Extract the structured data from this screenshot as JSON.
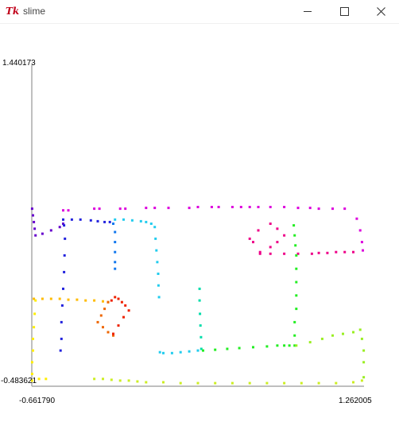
{
  "window": {
    "title": "slime",
    "app_icon": "tk-icon"
  },
  "buttons": {
    "minimize": "minimize-icon",
    "maximize": "maximize-icon",
    "close": "close-icon"
  },
  "axes": {
    "y_max_label": "1.440173",
    "y_min_label": "-0.483621",
    "x_min_label": "-0.661790",
    "x_max_label": "1.262005"
  },
  "chart_data": {
    "type": "scatter",
    "xlim": [
      -0.66179,
      1.262005
    ],
    "ylim": [
      -0.483621,
      1.440173
    ],
    "grid": false,
    "legend": "none",
    "series": [
      {
        "color": "#dd00dd",
        "x": [
          -0.48,
          -0.45,
          -0.3,
          -0.27,
          -0.15,
          -0.12,
          0.0,
          0.05,
          0.13,
          0.25,
          0.3,
          0.38,
          0.42,
          0.5,
          0.55,
          0.6,
          0.65,
          0.72,
          0.8,
          0.88,
          0.95,
          1.0,
          1.08,
          1.15,
          1.22,
          1.24,
          1.25,
          1.255
        ],
        "y": [
          0.57,
          0.57,
          0.58,
          0.58,
          0.58,
          0.58,
          0.585,
          0.585,
          0.585,
          0.585,
          0.59,
          0.59,
          0.59,
          0.59,
          0.59,
          0.59,
          0.59,
          0.59,
          0.59,
          0.585,
          0.585,
          0.58,
          0.58,
          0.58,
          0.52,
          0.45,
          0.38,
          0.33
        ]
      },
      {
        "color": "#ee0088",
        "x": [
          0.6,
          0.65,
          0.72,
          0.76,
          0.8,
          0.76,
          0.72,
          0.66,
          0.62,
          0.66,
          0.72,
          0.8,
          0.88,
          0.96,
          1.0,
          1.05,
          1.1,
          1.15,
          1.2
        ],
        "y": [
          0.4,
          0.45,
          0.49,
          0.46,
          0.42,
          0.38,
          0.35,
          0.31,
          0.38,
          0.32,
          0.31,
          0.31,
          0.31,
          0.31,
          0.315,
          0.315,
          0.32,
          0.32,
          0.32
        ]
      },
      {
        "color": "#6600cc",
        "x": [
          -0.66,
          -0.655,
          -0.65,
          -0.645,
          -0.64,
          -0.6,
          -0.55,
          -0.5,
          -0.48
        ],
        "y": [
          0.58,
          0.54,
          0.5,
          0.46,
          0.42,
          0.43,
          0.45,
          0.47,
          0.49
        ]
      },
      {
        "color": "#2222dd",
        "x": [
          -0.48,
          -0.43,
          -0.38,
          -0.32,
          -0.28,
          -0.24,
          -0.21,
          -0.475,
          -0.47,
          -0.472,
          -0.475,
          -0.48,
          -0.485,
          -0.49,
          -0.49,
          -0.495
        ],
        "y": [
          0.515,
          0.515,
          0.515,
          0.51,
          0.505,
          0.5,
          0.5,
          0.48,
          0.4,
          0.3,
          0.2,
          0.1,
          0.0,
          -0.1,
          -0.2,
          -0.27
        ]
      },
      {
        "color": "#1177ee",
        "x": [
          -0.19,
          -0.18,
          -0.18,
          -0.18,
          -0.18,
          -0.18
        ],
        "y": [
          0.49,
          0.44,
          0.38,
          0.32,
          0.26,
          0.22
        ]
      },
      {
        "color": "#22ccee",
        "x": [
          -0.18,
          -0.13,
          -0.08,
          -0.03,
          0.0,
          0.03,
          0.05,
          0.055,
          0.06,
          0.065,
          0.07,
          0.072,
          0.075,
          0.08,
          0.1,
          0.15,
          0.2,
          0.25,
          0.3
        ],
        "y": [
          0.515,
          0.515,
          0.51,
          0.505,
          0.5,
          0.49,
          0.47,
          0.4,
          0.33,
          0.26,
          0.19,
          0.12,
          0.05,
          -0.28,
          -0.285,
          -0.285,
          -0.28,
          -0.275,
          -0.27
        ]
      },
      {
        "color": "#00ddaa",
        "x": [
          0.31,
          0.31,
          0.312,
          0.315,
          0.318,
          0.32
        ],
        "y": [
          0.1,
          0.03,
          -0.05,
          -0.12,
          -0.19,
          -0.26
        ]
      },
      {
        "color": "#22ee22",
        "x": [
          0.33,
          0.4,
          0.47,
          0.54,
          0.62,
          0.7,
          0.76,
          0.8,
          0.83,
          0.855,
          0.86,
          0.865,
          0.87,
          0.87,
          0.87,
          0.87,
          0.87,
          0.86,
          0.86,
          0.86
        ],
        "y": [
          -0.27,
          -0.265,
          -0.26,
          -0.255,
          -0.25,
          -0.245,
          -0.24,
          -0.24,
          -0.24,
          0.48,
          0.42,
          0.36,
          0.3,
          0.22,
          0.14,
          0.06,
          -0.02,
          -0.1,
          -0.18,
          -0.24
        ]
      },
      {
        "color": "#99ee22",
        "x": [
          0.87,
          0.95,
          1.02,
          1.08,
          1.14,
          1.2,
          1.24,
          1.25,
          1.26,
          1.26,
          1.26
        ],
        "y": [
          -0.24,
          -0.22,
          -0.2,
          -0.18,
          -0.17,
          -0.16,
          -0.145,
          -0.2,
          -0.27,
          -0.34,
          -0.43
        ]
      },
      {
        "color": "#ccee22",
        "x": [
          -0.3,
          -0.25,
          -0.2,
          -0.15,
          -0.1,
          -0.05,
          0.0,
          0.1,
          0.2,
          0.3,
          0.4,
          0.5,
          0.6,
          0.7,
          0.8,
          0.9,
          1.0,
          1.1,
          1.2,
          1.25
        ],
        "y": [
          -0.44,
          -0.44,
          -0.445,
          -0.45,
          -0.45,
          -0.455,
          -0.46,
          -0.46,
          -0.465,
          -0.465,
          -0.465,
          -0.465,
          -0.465,
          -0.465,
          -0.465,
          -0.465,
          -0.465,
          -0.465,
          -0.46,
          -0.45
        ]
      },
      {
        "color": "#ffee00",
        "x": [
          -0.64,
          -0.645,
          -0.65,
          -0.655,
          -0.655,
          -0.66,
          -0.66,
          -0.66,
          -0.62,
          -0.58
        ],
        "y": [
          0.03,
          -0.05,
          -0.13,
          -0.2,
          -0.27,
          -0.34,
          -0.41,
          -0.45,
          -0.44,
          -0.44
        ]
      },
      {
        "color": "#ffbb00",
        "x": [
          -0.65,
          -0.6,
          -0.55,
          -0.5,
          -0.45,
          -0.4,
          -0.35,
          -0.3,
          -0.25,
          -0.22
        ],
        "y": [
          0.04,
          0.04,
          0.04,
          0.04,
          0.035,
          0.035,
          0.03,
          0.03,
          0.025,
          0.02
        ]
      },
      {
        "color": "#ee6600",
        "x": [
          -0.22,
          -0.24,
          -0.26,
          -0.28,
          -0.25,
          -0.22,
          -0.19,
          -0.19
        ],
        "y": [
          0.02,
          -0.02,
          -0.06,
          -0.1,
          -0.13,
          -0.16,
          -0.18,
          -0.17
        ]
      },
      {
        "color": "#ee2200",
        "x": [
          -0.19,
          -0.16,
          -0.13,
          -0.1,
          -0.12,
          -0.14,
          -0.16,
          -0.18,
          -0.2
        ],
        "y": [
          -0.17,
          -0.12,
          -0.07,
          -0.03,
          0.0,
          0.02,
          0.04,
          0.05,
          0.03
        ]
      }
    ]
  }
}
